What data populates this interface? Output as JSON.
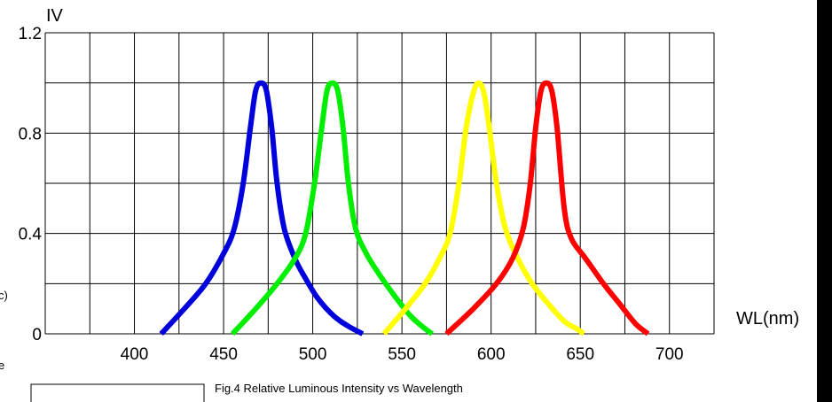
{
  "chart_data": {
    "type": "line",
    "title": "",
    "ylabel": "IV",
    "xlabel": "WL(nm)",
    "caption": "Fig.4 Relative Luminous Intensity vs Wavelength",
    "x_ticks": [
      400,
      450,
      500,
      550,
      600,
      650,
      700
    ],
    "y_ticks": [
      0,
      0.4,
      0.8,
      1.2
    ],
    "y_tick_labels": [
      "0",
      "0.4",
      "0.8",
      "1.2"
    ],
    "xlim": [
      350,
      725
    ],
    "ylim": [
      0,
      1.2
    ],
    "grid": true,
    "series": [
      {
        "color": "#0000dd",
        "x": [
          415,
          428,
          440,
          450,
          456,
          461,
          465,
          468,
          471,
          474,
          477,
          480,
          484,
          490,
          496,
          503,
          512,
          520,
          528
        ],
        "y": [
          0,
          0.1,
          0.2,
          0.32,
          0.42,
          0.6,
          0.82,
          0.97,
          1.0,
          0.97,
          0.82,
          0.6,
          0.42,
          0.3,
          0.22,
          0.14,
          0.07,
          0.03,
          0
        ]
      },
      {
        "color": "#00ee00",
        "x": [
          455,
          468,
          480,
          490,
          496,
          501,
          505,
          508,
          511,
          514,
          517,
          520,
          524,
          530,
          537,
          546,
          555,
          563,
          567
        ],
        "y": [
          0,
          0.1,
          0.2,
          0.3,
          0.4,
          0.6,
          0.82,
          0.97,
          1.0,
          0.97,
          0.82,
          0.6,
          0.42,
          0.32,
          0.24,
          0.15,
          0.07,
          0.02,
          0
        ]
      },
      {
        "color": "#ffff00",
        "x": [
          540,
          552,
          563,
          571,
          577,
          582,
          586,
          590,
          593,
          596,
          599,
          603,
          608,
          615,
          623,
          632,
          641,
          648,
          652
        ],
        "y": [
          0,
          0.1,
          0.2,
          0.3,
          0.4,
          0.6,
          0.82,
          0.96,
          1.0,
          0.96,
          0.82,
          0.6,
          0.42,
          0.3,
          0.2,
          0.12,
          0.05,
          0.02,
          0
        ]
      },
      {
        "color": "#ff0000",
        "x": [
          575,
          590,
          603,
          612,
          618,
          622,
          625,
          628,
          631,
          634,
          637,
          641,
          645,
          653,
          663,
          672,
          681,
          688
        ],
        "y": [
          0,
          0.1,
          0.2,
          0.3,
          0.42,
          0.6,
          0.82,
          0.97,
          1.0,
          0.97,
          0.82,
          0.5,
          0.38,
          0.3,
          0.2,
          0.12,
          0.04,
          0
        ]
      }
    ]
  },
  "fragments": {
    "left_paren": "c)",
    "left_letter": "e"
  }
}
